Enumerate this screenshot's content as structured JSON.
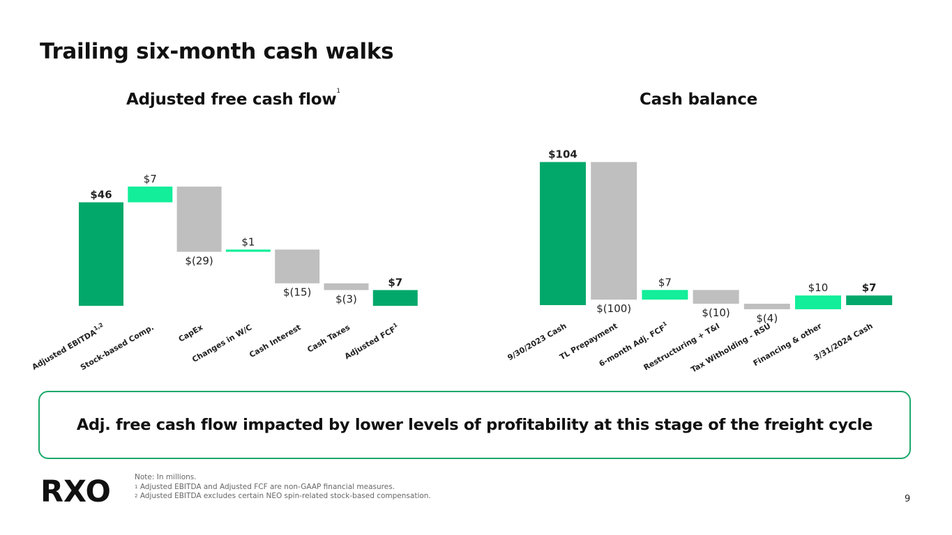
{
  "title": "Trailing six-month cash walks",
  "callout": "Adj. free cash flow impacted by lower levels of profitability at this stage of the freight cycle",
  "notes": {
    "line1": "Note: In millions.",
    "line2_sup": "1",
    "line2": "Adjusted EBITDA and Adjusted FCF are non-GAAP financial measures.",
    "line3_sup": "2",
    "line3": "Adjusted EBITDA excludes certain NEO spin-related stock-based compensation."
  },
  "logo": "RXO",
  "page_number": "9",
  "colors": {
    "total": "#02a86a",
    "positive": "#12ee9a",
    "negative": "#bfbfbf",
    "accent": "#1aa86a"
  },
  "chart_data": [
    {
      "type": "waterfall",
      "title": "Adjusted free cash flow",
      "title_sup": "1",
      "categories": [
        "Adjusted EBITDA",
        "Stock-based Comp.",
        "CapEx",
        "Changes in W/C",
        "Cash Interest",
        "Cash Taxes",
        "Adjusted FCF"
      ],
      "category_sups": [
        "1,2",
        "",
        "",
        "",
        "",
        "",
        "1"
      ],
      "values": [
        46,
        7,
        -29,
        1,
        -15,
        -3,
        7
      ],
      "kinds": [
        "total",
        "positive",
        "negative",
        "positive",
        "negative",
        "negative",
        "total"
      ],
      "labels": [
        "$46",
        "$7",
        "$(29)",
        "$1",
        "$(15)",
        "$(3)",
        "$7"
      ],
      "ylim": [
        0,
        58
      ]
    },
    {
      "type": "waterfall",
      "title": "Cash balance",
      "title_sup": "",
      "categories": [
        "9/30/2023 Cash",
        "TL Prepayment",
        "6-month Adj. FCF",
        "Restructuring + T&I",
        "Tax Witholding - RSU",
        "Financing & other",
        "3/31/2024 Cash"
      ],
      "category_sups": [
        "",
        "",
        "1",
        "",
        "",
        "",
        ""
      ],
      "values": [
        104,
        -100,
        7,
        -10,
        -4,
        10,
        7
      ],
      "kinds": [
        "total",
        "negative",
        "positive",
        "negative",
        "negative",
        "positive",
        "total"
      ],
      "labels": [
        "$104",
        "$(100)",
        "$7",
        "$(10)",
        "$(4)",
        "$10",
        "$7"
      ],
      "ylim": [
        -6,
        110
      ]
    }
  ]
}
